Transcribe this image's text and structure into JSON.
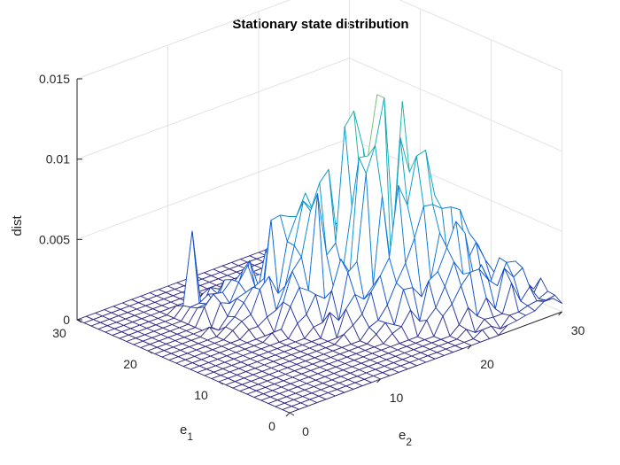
{
  "window": {
    "title": "Stationary state distribution"
  },
  "chart_data": {
    "type": "surface",
    "title": "Stationary state distribution",
    "xlabel": "e",
    "xlabel_sub": "1",
    "ylabel": "e",
    "ylabel_sub": "2",
    "zlabel": "dist",
    "xlim": [
      0,
      30
    ],
    "ylim": [
      0,
      30
    ],
    "zlim": [
      0,
      0.015
    ],
    "x_ticks": [
      "0",
      "10",
      "20",
      "30"
    ],
    "y_ticks": [
      "0",
      "10",
      "20",
      "30"
    ],
    "z_ticks": [
      "0",
      "0.005",
      "0.01",
      "0.015"
    ],
    "grid": true,
    "colormap": "parula",
    "surface": {
      "e1_range": [
        0,
        30
      ],
      "e2_range": [
        0,
        30
      ],
      "peak_value": 0.0135,
      "peak_location": {
        "e1": 12,
        "e2": 19
      },
      "ridge_values": [
        {
          "e1": 10,
          "e2": 20,
          "dist": 0.011
        },
        {
          "e1": 12,
          "e2": 17,
          "dist": 0.01
        },
        {
          "e1": 9,
          "e2": 22,
          "dist": 0.01
        },
        {
          "e1": 14,
          "e2": 14,
          "dist": 0.008
        },
        {
          "e1": 18,
          "e2": 12,
          "dist": 0.006
        },
        {
          "e1": 24,
          "e2": 8,
          "dist": 0.005
        },
        {
          "e1": 6,
          "e2": 24,
          "dist": 0.005
        }
      ]
    },
    "colors": {
      "low": "#352a87",
      "mid": "#0f9fd6",
      "high": "#f9fb0e"
    }
  }
}
